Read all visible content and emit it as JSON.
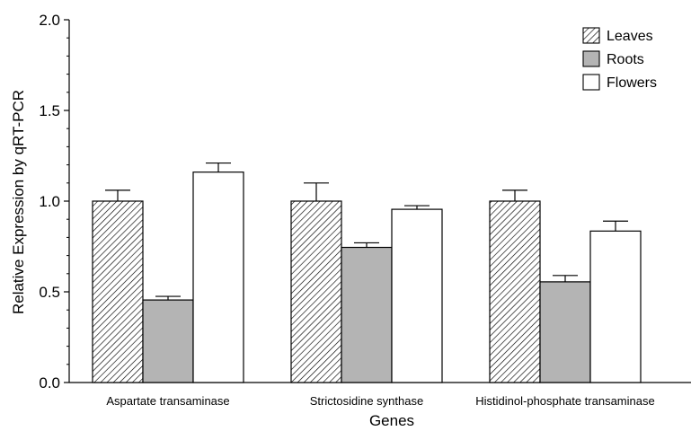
{
  "chart_data": {
    "type": "bar",
    "title": "",
    "xlabel": "Genes",
    "ylabel": "Relative Expression by qRT-PCR",
    "ylim": [
      0,
      2.0
    ],
    "yticks": [
      "0.0",
      "0.5",
      "1.0",
      "1.5",
      "2.0"
    ],
    "categories": [
      "Aspartate transaminase",
      "Strictosidine synthase",
      "Histidinol-phosphate transaminase"
    ],
    "series": [
      {
        "name": "Leaves",
        "values": [
          1.0,
          1.0,
          1.0
        ],
        "errors": [
          0.06,
          0.1,
          0.06
        ],
        "fill": "hatch"
      },
      {
        "name": "Roots",
        "values": [
          0.455,
          0.745,
          0.555
        ],
        "errors": [
          0.02,
          0.025,
          0.035
        ],
        "fill": "#b4b4b4"
      },
      {
        "name": "Flowers",
        "values": [
          1.16,
          0.955,
          0.835
        ],
        "errors": [
          0.05,
          0.02,
          0.055
        ],
        "fill": "#ffffff"
      }
    ],
    "legend_position": "top-right",
    "grid": false
  }
}
